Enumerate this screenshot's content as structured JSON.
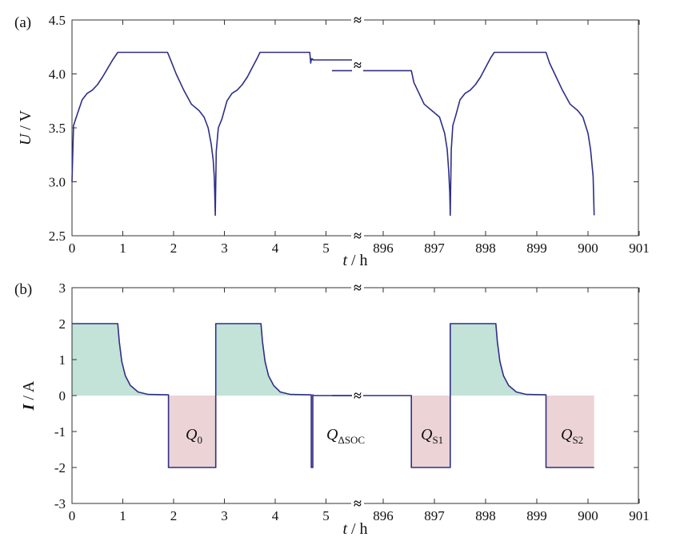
{
  "chart_data": [
    {
      "panel": "(a)",
      "type": "line",
      "ylabel_var": "U",
      "ylabel_unit": " / V",
      "xlabel_var": "t",
      "xlabel_unit": " / h",
      "ylim": [
        2.5,
        4.5
      ],
      "yticks": [
        "2.5",
        "3.0",
        "3.5",
        "4.0",
        "4.5"
      ],
      "xticks_left": [
        "0",
        "1",
        "2",
        "3",
        "4",
        "5"
      ],
      "xticks_right": [
        "896",
        "897",
        "898",
        "899",
        "900",
        "901"
      ],
      "axis_break": "≈",
      "line_color": "#2e2f86",
      "series": [
        {
          "segment": "left",
          "x": [
            0,
            0.03,
            0.1,
            0.2,
            0.3,
            0.4,
            0.5,
            0.6,
            0.7,
            0.8,
            0.9,
            0.92,
            1.5,
            1.88,
            1.95,
            2.05,
            2.2,
            2.35,
            2.5,
            2.6,
            2.68,
            2.74,
            2.78,
            2.8,
            2.81,
            2.82,
            2.84,
            2.88,
            2.95,
            3.05,
            3.15,
            3.25,
            3.35,
            3.45,
            3.55,
            3.65,
            3.7,
            3.72,
            4.4,
            4.68,
            4.7,
            4.71,
            4.72,
            4.73,
            4.75,
            5.55
          ],
          "y": [
            3.0,
            3.52,
            3.62,
            3.76,
            3.82,
            3.85,
            3.9,
            3.97,
            4.05,
            4.13,
            4.2,
            4.2,
            4.2,
            4.2,
            4.12,
            4.0,
            3.85,
            3.72,
            3.66,
            3.6,
            3.5,
            3.35,
            3.2,
            3.05,
            2.9,
            2.69,
            3.28,
            3.5,
            3.58,
            3.75,
            3.82,
            3.85,
            3.9,
            3.97,
            4.06,
            4.15,
            4.2,
            4.2,
            4.2,
            4.2,
            4.1,
            4.14,
            4.13,
            4.14,
            4.13,
            4.13
          ]
        },
        {
          "segment": "right",
          "x": [
            895,
            896.55,
            896.6,
            896.7,
            896.8,
            896.95,
            897.1,
            897.2,
            897.25,
            897.28,
            897.3,
            897.31,
            897.33,
            897.36,
            897.42,
            897.5,
            897.6,
            897.7,
            897.8,
            897.9,
            898.0,
            898.1,
            898.17,
            898.2,
            899.18,
            899.25,
            899.35,
            899.5,
            899.65,
            899.8,
            899.9,
            900.0,
            900.05,
            900.1,
            900.12
          ],
          "y": [
            4.03,
            4.03,
            3.92,
            3.82,
            3.72,
            3.66,
            3.6,
            3.45,
            3.3,
            3.1,
            2.9,
            2.69,
            3.3,
            3.52,
            3.62,
            3.76,
            3.82,
            3.85,
            3.9,
            3.97,
            4.06,
            4.15,
            4.2,
            4.2,
            4.2,
            4.1,
            4.0,
            3.85,
            3.72,
            3.66,
            3.6,
            3.45,
            3.3,
            3.05,
            2.69
          ]
        }
      ]
    },
    {
      "panel": "(b)",
      "type": "line",
      "ylabel_var": "I",
      "ylabel_unit": " / A",
      "xlabel_var": "t",
      "xlabel_unit": " / h",
      "ylim": [
        -3,
        3
      ],
      "yticks": [
        "-3",
        "-2",
        "-1",
        "0",
        "1",
        "2",
        "3"
      ],
      "xticks_left": [
        "0",
        "1",
        "2",
        "3",
        "4",
        "5"
      ],
      "xticks_right": [
        "896",
        "897",
        "898",
        "899",
        "900",
        "901"
      ],
      "axis_break": "≈",
      "line_color": "#2e2f86",
      "fill_charge_color": "#c3e2d8",
      "fill_discharge_color": "#ebd3d6",
      "series": [
        {
          "segment": "left",
          "x": [
            0,
            0.9,
            0.93,
            0.98,
            1.05,
            1.15,
            1.3,
            1.5,
            1.9,
            1.9,
            2.83,
            2.83,
            3.72,
            3.75,
            3.8,
            3.87,
            3.97,
            4.1,
            4.3,
            4.71,
            4.71,
            4.74,
            4.74,
            4.76,
            5.55
          ],
          "y": [
            2,
            2,
            1.5,
            0.95,
            0.55,
            0.28,
            0.1,
            0.03,
            0.02,
            -2,
            -2,
            2,
            2,
            1.5,
            0.95,
            0.55,
            0.28,
            0.1,
            0.03,
            0.02,
            -2,
            -2,
            0.02,
            0.0,
            0.0
          ]
        },
        {
          "segment": "right",
          "x": [
            895,
            896.55,
            896.55,
            897.31,
            897.31,
            898.2,
            898.23,
            898.28,
            898.35,
            898.45,
            898.6,
            898.8,
            899.18,
            899.18,
            900.12
          ],
          "y": [
            0.0,
            0.0,
            -2,
            -2,
            2,
            2,
            1.5,
            0.95,
            0.55,
            0.28,
            0.1,
            0.03,
            0.02,
            -2,
            -2
          ]
        }
      ],
      "annotations": [
        {
          "base": "Q",
          "sub": "0"
        },
        {
          "base": "Q",
          "sub": "ΔSOC"
        },
        {
          "base": "Q",
          "sub": "S1"
        },
        {
          "base": "Q",
          "sub": "S2"
        }
      ]
    }
  ]
}
